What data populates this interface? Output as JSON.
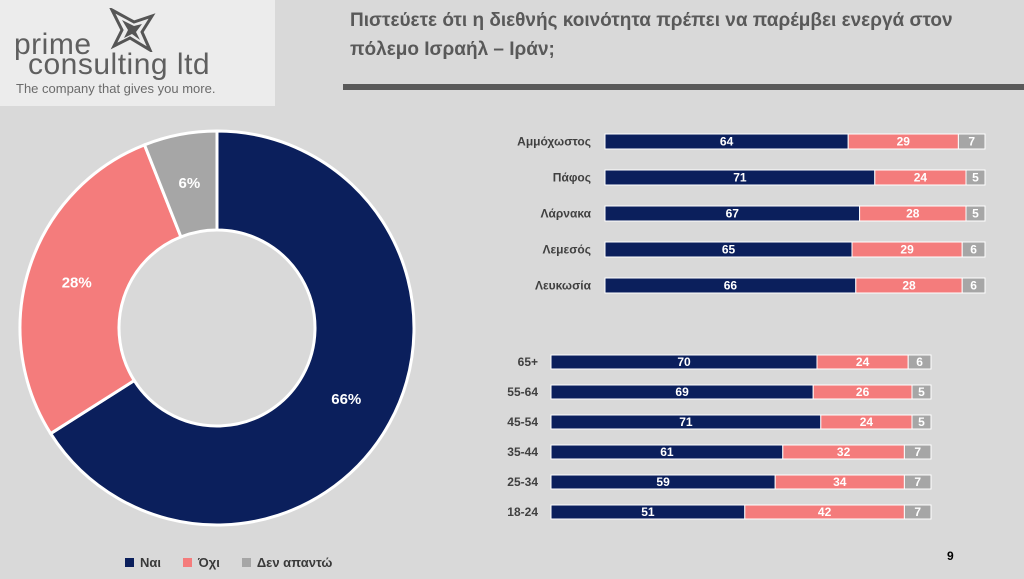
{
  "logo": {
    "line1": "prime",
    "line2": "consulting ltd",
    "tagline": "The company that gives you more."
  },
  "title": "Πιστεύετε ότι η διεθνής κοινότητα πρέπει να παρέμβει ενεργά στον πόλεμο Ισραήλ – Ιράν;",
  "page_number": "9",
  "colors": {
    "yes": "#0b1f5c",
    "no": "#f47c7c",
    "dk": "#a6a6a6"
  },
  "legend": [
    {
      "label": "Ναι",
      "color": "#0b1f5c"
    },
    {
      "label": "Όχι",
      "color": "#f47c7c"
    },
    {
      "label": "Δεν απαντώ",
      "color": "#a6a6a6"
    }
  ],
  "chart_data": [
    {
      "type": "pie",
      "variant": "donut",
      "categories": [
        "Ναι",
        "Όχι",
        "Δεν απαντώ"
      ],
      "values": [
        66,
        28,
        6
      ],
      "labels": [
        "66%",
        "28%",
        "6%"
      ],
      "colors": [
        "#0b1f5c",
        "#f47c7c",
        "#a6a6a6"
      ]
    },
    {
      "type": "bar",
      "orientation": "horizontal",
      "stacked": true,
      "categories": [
        "Αμμόχωστος",
        "Πάφος",
        "Λάρνακα",
        "Λεμεσός",
        "Λευκωσία"
      ],
      "series": [
        {
          "name": "Ναι",
          "values": [
            64,
            71,
            67,
            65,
            66
          ],
          "color": "#0b1f5c"
        },
        {
          "name": "Όχι",
          "values": [
            29,
            24,
            28,
            29,
            28
          ],
          "color": "#f47c7c"
        },
        {
          "name": "Δεν απαντώ",
          "values": [
            7,
            5,
            5,
            6,
            6
          ],
          "color": "#a6a6a6"
        }
      ],
      "xlim": [
        0,
        100
      ]
    },
    {
      "type": "bar",
      "orientation": "horizontal",
      "stacked": true,
      "categories": [
        "65+",
        "55-64",
        "45-54",
        "35-44",
        "25-34",
        "18-24"
      ],
      "series": [
        {
          "name": "Ναι",
          "values": [
            70,
            69,
            71,
            61,
            59,
            51
          ],
          "color": "#0b1f5c"
        },
        {
          "name": "Όχι",
          "values": [
            24,
            26,
            24,
            32,
            34,
            42
          ],
          "color": "#f47c7c"
        },
        {
          "name": "Δεν απαντώ",
          "values": [
            6,
            5,
            5,
            7,
            7,
            7
          ],
          "color": "#a6a6a6"
        }
      ],
      "xlim": [
        0,
        100
      ]
    }
  ]
}
